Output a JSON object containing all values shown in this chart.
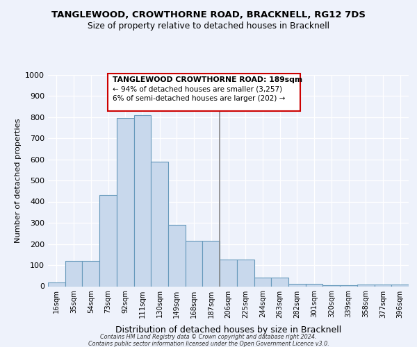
{
  "title": "TANGLEWOOD, CROWTHORNE ROAD, BRACKNELL, RG12 7DS",
  "subtitle": "Size of property relative to detached houses in Bracknell",
  "xlabel": "Distribution of detached houses by size in Bracknell",
  "ylabel": "Number of detached properties",
  "categories": [
    "16sqm",
    "35sqm",
    "54sqm",
    "73sqm",
    "92sqm",
    "111sqm",
    "130sqm",
    "149sqm",
    "168sqm",
    "187sqm",
    "206sqm",
    "225sqm",
    "244sqm",
    "263sqm",
    "282sqm",
    "301sqm",
    "320sqm",
    "339sqm",
    "358sqm",
    "377sqm",
    "396sqm"
  ],
  "values": [
    18,
    120,
    120,
    430,
    795,
    808,
    590,
    290,
    215,
    215,
    125,
    125,
    40,
    40,
    13,
    13,
    4,
    4,
    7,
    7,
    8
  ],
  "bar_color": "#c8d8ec",
  "bar_edge_color": "#6699bb",
  "vline_color": "#888888",
  "annotation_line1": "TANGLEWOOD CROWTHORNE ROAD: 189sqm",
  "annotation_line2": "← 94% of detached houses are smaller (3,257)",
  "annotation_line3": "6% of semi-detached houses are larger (202) →",
  "annotation_box_color": "#cc0000",
  "footer_line1": "Contains HM Land Registry data © Crown copyright and database right 2024.",
  "footer_line2": "Contains public sector information licensed under the Open Government Licence v3.0.",
  "ylim": [
    0,
    1000
  ],
  "yticks": [
    0,
    100,
    200,
    300,
    400,
    500,
    600,
    700,
    800,
    900,
    1000
  ],
  "background_color": "#eef2fb",
  "grid_color": "#ffffff",
  "vline_x_index": 9.5
}
